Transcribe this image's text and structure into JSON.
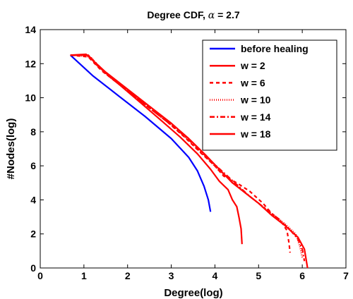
{
  "chart_data": {
    "type": "line",
    "title": "Degree CDF, α = 2.7",
    "title_prefix": "Degree CDF,",
    "title_symbol": "α",
    "title_suffix": "= 2.7",
    "xlabel": "Degree(log)",
    "ylabel": "#Nodes(log)",
    "xlim": [
      0,
      7
    ],
    "ylim": [
      0,
      14
    ],
    "xticks": [
      0,
      1,
      2,
      3,
      4,
      5,
      6,
      7
    ],
    "yticks": [
      0,
      2,
      4,
      6,
      8,
      10,
      12,
      14
    ],
    "grid": false,
    "legend_position": "top-right",
    "series": [
      {
        "name": "before healing",
        "color": "#0000ff",
        "dash": "solid",
        "points": [
          [
            0.69,
            12.5
          ],
          [
            1.2,
            11.3
          ],
          [
            1.8,
            10.1
          ],
          [
            2.4,
            8.9
          ],
          [
            3.0,
            7.6
          ],
          [
            3.4,
            6.5
          ],
          [
            3.6,
            5.7
          ],
          [
            3.75,
            4.8
          ],
          [
            3.85,
            4.0
          ],
          [
            3.9,
            3.3
          ]
        ]
      },
      {
        "name": "w = 2",
        "color": "#ff0000",
        "dash": "solid",
        "points": [
          [
            0.69,
            12.5
          ],
          [
            1.1,
            12.5
          ],
          [
            1.3,
            11.9
          ],
          [
            1.8,
            10.8
          ],
          [
            2.3,
            9.7
          ],
          [
            2.8,
            8.6
          ],
          [
            3.2,
            7.7
          ],
          [
            3.6,
            6.7
          ],
          [
            3.9,
            5.8
          ],
          [
            4.1,
            5.1
          ],
          [
            4.3,
            4.6
          ],
          [
            4.4,
            4.0
          ],
          [
            4.5,
            3.6
          ],
          [
            4.55,
            3.0
          ],
          [
            4.6,
            2.3
          ],
          [
            4.62,
            1.4
          ]
        ]
      },
      {
        "name": "w = 6",
        "color": "#ff0000",
        "dash": "5,4",
        "points": [
          [
            0.69,
            12.5
          ],
          [
            1.1,
            12.4
          ],
          [
            1.4,
            11.6
          ],
          [
            1.9,
            10.6
          ],
          [
            2.4,
            9.6
          ],
          [
            2.9,
            8.6
          ],
          [
            3.3,
            7.7
          ],
          [
            3.7,
            6.7
          ],
          [
            4.0,
            6.0
          ],
          [
            4.2,
            5.4
          ],
          [
            4.5,
            5.0
          ],
          [
            4.8,
            4.5
          ],
          [
            5.1,
            3.8
          ],
          [
            5.3,
            3.2
          ],
          [
            5.5,
            2.8
          ],
          [
            5.65,
            2.2
          ],
          [
            5.7,
            1.4
          ],
          [
            5.72,
            0.9
          ]
        ]
      },
      {
        "name": "w = 10",
        "color": "#ff0000",
        "dash": "1,2",
        "points": [
          [
            0.69,
            12.5
          ],
          [
            1.15,
            12.4
          ],
          [
            1.5,
            11.4
          ],
          [
            2.0,
            10.4
          ],
          [
            2.5,
            9.4
          ],
          [
            3.0,
            8.4
          ],
          [
            3.4,
            7.5
          ],
          [
            3.8,
            6.5
          ],
          [
            4.1,
            5.7
          ],
          [
            4.4,
            5.1
          ],
          [
            4.7,
            4.4
          ],
          [
            5.0,
            3.8
          ],
          [
            5.3,
            3.2
          ],
          [
            5.6,
            2.6
          ],
          [
            5.85,
            2.0
          ],
          [
            5.95,
            1.2
          ],
          [
            6.0,
            0.6
          ]
        ]
      },
      {
        "name": "w = 14",
        "color": "#ff0000",
        "dash": "7,3,2,3",
        "points": [
          [
            0.69,
            12.5
          ],
          [
            1.1,
            12.5
          ],
          [
            1.6,
            11.2
          ],
          [
            2.1,
            10.2
          ],
          [
            2.6,
            9.2
          ],
          [
            3.1,
            8.2
          ],
          [
            3.5,
            7.3
          ],
          [
            3.9,
            6.3
          ],
          [
            4.2,
            5.6
          ],
          [
            4.5,
            4.9
          ],
          [
            4.8,
            4.2
          ],
          [
            5.1,
            3.6
          ],
          [
            5.4,
            3.0
          ],
          [
            5.7,
            2.3
          ],
          [
            5.9,
            1.7
          ],
          [
            6.0,
            1.1
          ],
          [
            6.05,
            0.4
          ]
        ]
      },
      {
        "name": "w = 18",
        "color": "#ff0000",
        "dash": "solid",
        "points": [
          [
            0.69,
            12.5
          ],
          [
            1.05,
            12.55
          ],
          [
            1.5,
            11.5
          ],
          [
            2.0,
            10.5
          ],
          [
            2.5,
            9.5
          ],
          [
            3.0,
            8.5
          ],
          [
            3.4,
            7.6
          ],
          [
            3.8,
            6.6
          ],
          [
            4.1,
            5.8
          ],
          [
            4.4,
            5.0
          ],
          [
            4.7,
            4.4
          ],
          [
            5.0,
            3.8
          ],
          [
            5.3,
            3.1
          ],
          [
            5.6,
            2.5
          ],
          [
            5.9,
            1.8
          ],
          [
            6.05,
            1.1
          ],
          [
            6.12,
            0.0
          ]
        ]
      }
    ]
  }
}
